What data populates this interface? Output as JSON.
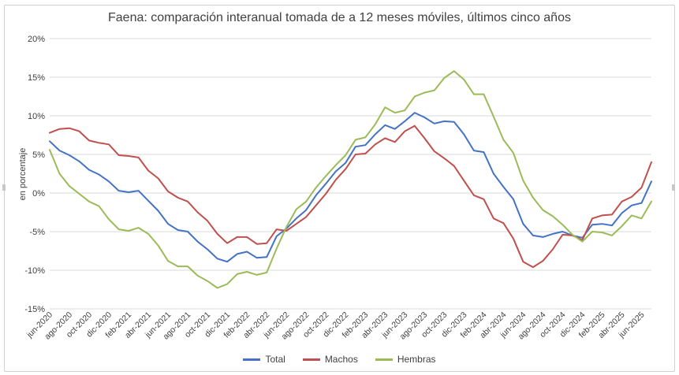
{
  "chart_data": {
    "type": "line",
    "title": "Faena: comparación interanual tomada de a 12 meses móviles, últimos cinco años",
    "ylabel": "en porcentaje",
    "xlabel": "",
    "ylim": [
      -15,
      20
    ],
    "yticks": [
      -15,
      -10,
      -5,
      0,
      5,
      10,
      15,
      20
    ],
    "ytick_labels": [
      "-15%",
      "-10%",
      "-5%",
      "0%",
      "5%",
      "10%",
      "15%",
      "20%"
    ],
    "grid": true,
    "legend_position": "bottom",
    "xtick_labels": [
      "jun-2020",
      "ago-2020",
      "oct-2020",
      "dic-2020",
      "feb-2021",
      "abr-2021",
      "jun-2021",
      "ago-2021",
      "oct-2021",
      "dic-2021",
      "feb-2022",
      "abr-2022",
      "jun-2022",
      "ago-2022",
      "oct-2022",
      "dic-2022",
      "feb-2023",
      "abr-2023",
      "jun-2023",
      "ago-2023",
      "oct-2023",
      "dic-2023",
      "feb-2024",
      "abr-2024",
      "jun-2024",
      "ago-2024",
      "oct-2024",
      "dic-2024",
      "feb-2025",
      "abr-2025",
      "jun-2025"
    ],
    "series": [
      {
        "name": "Total",
        "color": "#4472C4",
        "values": [
          6.7,
          5.5,
          4.9,
          4.1,
          3.0,
          2.4,
          1.5,
          0.3,
          0.1,
          0.3,
          -1.0,
          -2.3,
          -4.0,
          -4.8,
          -5.0,
          -6.3,
          -7.3,
          -8.5,
          -8.9,
          -7.9,
          -7.6,
          -8.4,
          -8.3,
          -5.6,
          -4.6,
          -3.3,
          -2.2,
          -0.3,
          1.2,
          2.8,
          3.9,
          6.0,
          6.2,
          7.6,
          8.8,
          8.3,
          9.3,
          10.4,
          9.8,
          9.0,
          9.3,
          9.2,
          7.6,
          5.5,
          5.3,
          2.5,
          0.8,
          -0.8,
          -4.0,
          -5.5,
          -5.7,
          -5.3,
          -5.0,
          -5.5,
          -5.8,
          -4.1,
          -4.0,
          -4.2,
          -2.6,
          -1.6,
          -1.3,
          1.5
        ]
      },
      {
        "name": "Machos",
        "color": "#C0504D",
        "values": [
          7.8,
          8.3,
          8.4,
          8.0,
          6.8,
          6.5,
          6.3,
          4.9,
          4.8,
          4.6,
          2.9,
          1.9,
          0.2,
          -0.6,
          -1.1,
          -2.5,
          -3.6,
          -5.3,
          -6.5,
          -5.7,
          -5.7,
          -6.6,
          -6.5,
          -4.7,
          -4.9,
          -4.0,
          -3.1,
          -1.6,
          -0.1,
          1.7,
          3.1,
          5.0,
          5.1,
          6.3,
          7.1,
          6.6,
          8.0,
          8.7,
          7.1,
          5.4,
          4.5,
          3.5,
          1.6,
          -0.3,
          -0.8,
          -3.3,
          -3.9,
          -5.9,
          -8.9,
          -9.6,
          -8.8,
          -7.3,
          -5.4,
          -5.5,
          -6.1,
          -3.3,
          -2.9,
          -2.8,
          -1.1,
          -0.5,
          0.7,
          4.0
        ]
      },
      {
        "name": "Hembras",
        "color": "#9BBB59",
        "values": [
          5.6,
          2.5,
          0.9,
          -0.1,
          -1.1,
          -1.7,
          -3.4,
          -4.7,
          -4.9,
          -4.5,
          -5.3,
          -6.8,
          -8.8,
          -9.5,
          -9.5,
          -10.7,
          -11.4,
          -12.3,
          -11.8,
          -10.5,
          -10.2,
          -10.6,
          -10.3,
          -7.2,
          -4.4,
          -2.1,
          -1.1,
          0.7,
          2.2,
          3.6,
          4.9,
          6.9,
          7.2,
          8.9,
          11.1,
          10.4,
          10.7,
          12.5,
          13.0,
          13.3,
          14.9,
          15.8,
          14.7,
          12.8,
          12.8,
          9.9,
          6.9,
          5.2,
          1.6,
          -0.6,
          -2.2,
          -3.0,
          -4.1,
          -5.4,
          -6.3,
          -5.0,
          -5.1,
          -5.5,
          -4.3,
          -2.9,
          -3.3,
          -1.1
        ]
      }
    ]
  }
}
